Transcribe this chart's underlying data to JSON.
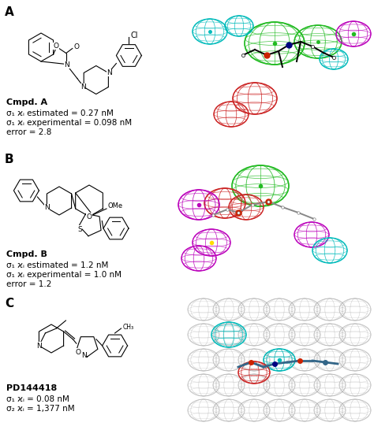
{
  "panel_labels": [
    "A",
    "B",
    "C"
  ],
  "compound_A": {
    "name_bold": "Cmpd. A",
    "line1": "σ₁ ϰᵢ estimated = 0.27 nM",
    "line2": "σ₁ ϰᵢ experimental = 0.098 nM",
    "line3": "error = 2.8"
  },
  "compound_B": {
    "name_bold": "Cmpd. B",
    "line1": "σ₁ ϰᵢ estimated = 1.2 nM",
    "line2": "σ₁ ϰᵢ experimental = 1.0 nM",
    "line3": "error = 1.2"
  },
  "compound_C": {
    "name_bold": "PD144418",
    "line1": "σ₁ ϰᵢ = 0.08 nM",
    "line2": "σ₂ ϰᵢ = 1,377 nM"
  },
  "bg_color": "#ffffff",
  "text_color": "#000000",
  "green": "#22bb22",
  "cyan": "#00bbbb",
  "magenta": "#bb00bb",
  "red_sphere": "#cc2222",
  "gray_sphere": "#aaaaaa",
  "panel_label_fs": 11,
  "compound_name_fs": 8,
  "text_fs": 7.5
}
